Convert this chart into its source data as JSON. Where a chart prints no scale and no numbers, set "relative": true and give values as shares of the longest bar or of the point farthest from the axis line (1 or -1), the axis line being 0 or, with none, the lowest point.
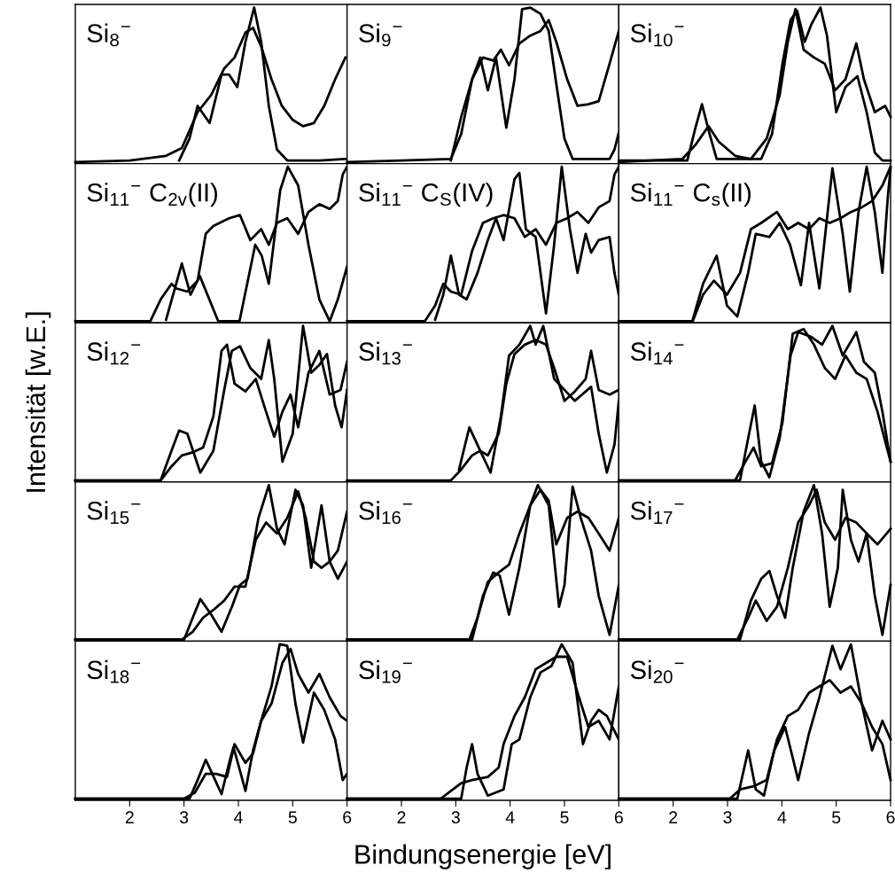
{
  "chart_data": [
    {
      "type": "line",
      "title": "Si$_{8}$$^{−}$",
      "relative": true,
      "xlim": [
        1,
        6
      ],
      "xticks": [
        2,
        3,
        4,
        5,
        6
      ],
      "tick_labels": false,
      "series": [
        {
          "color": "#000000",
          "x": [
            1.0,
            2.0,
            2.67,
            2.96,
            3.25,
            3.5,
            3.74,
            3.93,
            4.13,
            4.27,
            4.42,
            4.61,
            4.8,
            5.0,
            5.19,
            5.39,
            5.58,
            5.78,
            5.97
          ],
          "values": [
            0.01,
            0.02,
            0.05,
            0.1,
            0.33,
            0.44,
            0.61,
            0.68,
            0.84,
            0.87,
            0.75,
            0.54,
            0.37,
            0.28,
            0.24,
            0.26,
            0.37,
            0.54,
            0.68
          ]
        },
        {
          "color": "#000000",
          "x": [
            2.91,
            3.1,
            3.25,
            3.47,
            3.69,
            3.83,
            3.98,
            4.13,
            4.29,
            4.42,
            4.56,
            4.71,
            4.9,
            5.5,
            6.0
          ],
          "values": [
            0.02,
            0.16,
            0.37,
            0.26,
            0.57,
            0.57,
            0.49,
            0.78,
            1.0,
            0.78,
            0.37,
            0.09,
            0.02,
            0.02,
            0.03
          ]
        }
      ]
    },
    {
      "type": "line",
      "title": "Si$_{9}$$^{−}$",
      "relative": true,
      "xlim": [
        1,
        6
      ],
      "xticks": [
        2,
        3,
        4,
        5,
        6
      ],
      "tick_labels": false,
      "series": [
        {
          "color": "#000000",
          "x": [
            1.0,
            2.0,
            2.91,
            3.1,
            3.3,
            3.5,
            3.69,
            3.83,
            3.98,
            4.17,
            4.37,
            4.56,
            4.71,
            4.85,
            5.05,
            5.24,
            5.44,
            5.63,
            5.83,
            6.0
          ],
          "values": [
            0.01,
            0.02,
            0.03,
            0.19,
            0.54,
            0.68,
            0.66,
            0.73,
            0.63,
            0.77,
            0.82,
            0.85,
            0.92,
            0.78,
            0.54,
            0.37,
            0.38,
            0.4,
            0.64,
            0.85
          ]
        },
        {
          "color": "#000000",
          "x": [
            2.91,
            3.1,
            3.3,
            3.45,
            3.59,
            3.74,
            3.93,
            4.08,
            4.22,
            4.37,
            4.56,
            4.71,
            4.85,
            5.0,
            5.15,
            5.83,
            5.92,
            6.0
          ],
          "values": [
            0.02,
            0.3,
            0.54,
            0.68,
            0.47,
            0.68,
            0.23,
            0.54,
            0.99,
            1.0,
            0.96,
            0.85,
            0.51,
            0.16,
            0.03,
            0.03,
            0.09,
            0.2
          ]
        }
      ]
    },
    {
      "type": "line",
      "title": "Si$_{10}$$^{−}$",
      "relative": true,
      "xlim": [
        1,
        6
      ],
      "xticks": [
        2,
        3,
        4,
        5,
        6
      ],
      "tick_labels": false,
      "series": [
        {
          "color": "#000000",
          "x": [
            1.0,
            2.17,
            2.41,
            2.65,
            2.84,
            3.14,
            3.43,
            3.72,
            3.96,
            4.11,
            4.25,
            4.4,
            4.59,
            4.79,
            4.98,
            5.17,
            5.37,
            5.51,
            5.71,
            5.9,
            6.0
          ],
          "values": [
            0.01,
            0.03,
            0.12,
            0.24,
            0.14,
            0.05,
            0.03,
            0.16,
            0.44,
            0.78,
            0.99,
            0.73,
            0.68,
            0.64,
            0.47,
            0.54,
            0.77,
            0.54,
            0.33,
            0.37,
            0.3
          ]
        },
        {
          "color": "#000000",
          "x": [
            1.0,
            2.26,
            2.41,
            2.53,
            2.67,
            2.8,
            3.62,
            3.82,
            4.01,
            4.16,
            4.28,
            4.42,
            4.54,
            4.71,
            4.83,
            5.0,
            5.17,
            5.39,
            5.56,
            5.71,
            5.85,
            6.0
          ],
          "values": [
            0.02,
            0.02,
            0.23,
            0.38,
            0.19,
            0.03,
            0.03,
            0.19,
            0.64,
            0.92,
            0.98,
            0.78,
            0.89,
            1.0,
            0.82,
            0.33,
            0.49,
            0.56,
            0.33,
            0.07,
            0.02,
            0.02
          ]
        }
      ]
    },
    {
      "type": "line",
      "title": "Si$_{11}$$^{−}$ C$_{2v}$(II)",
      "relative": true,
      "xlim": [
        1,
        6
      ],
      "xticks": [
        2,
        3,
        4,
        5,
        6
      ],
      "tick_labels": false,
      "series": [
        {
          "color": "#000000",
          "x": [
            1.0,
            2.38,
            2.57,
            2.77,
            2.86,
            3.06,
            3.25,
            3.4,
            3.54,
            3.83,
            4.03,
            4.22,
            4.42,
            4.56,
            4.71,
            4.9,
            5.1,
            5.29,
            5.49,
            5.68,
            5.83,
            5.92,
            6.0
          ],
          "values": [
            0.01,
            0.01,
            0.15,
            0.25,
            0.22,
            0.2,
            0.27,
            0.57,
            0.62,
            0.67,
            0.69,
            0.53,
            0.6,
            0.5,
            0.64,
            0.67,
            0.57,
            0.71,
            0.76,
            0.73,
            0.78,
            0.95,
            1.0
          ]
        },
        {
          "color": "#000000",
          "x": [
            2.67,
            2.96,
            3.12,
            3.29,
            3.63,
            4.02,
            4.31,
            4.43,
            4.56,
            4.77,
            4.91,
            5.1,
            5.29,
            5.49,
            5.68,
            5.83,
            6.0
          ],
          "values": [
            0.02,
            0.38,
            0.18,
            0.3,
            0.01,
            0.01,
            0.5,
            0.43,
            0.25,
            0.85,
            1.0,
            0.88,
            0.5,
            0.15,
            0.01,
            0.15,
            0.36
          ]
        }
      ]
    },
    {
      "type": "line",
      "title": "Si$_{11}$$^{−}$ C$_{S}$(IV)",
      "relative": true,
      "xlim": [
        1,
        6
      ],
      "xticks": [
        2,
        3,
        4,
        5,
        6
      ],
      "tick_labels": false,
      "series": [
        {
          "color": "#000000",
          "x": [
            1.0,
            2.43,
            2.62,
            2.77,
            2.91,
            3.1,
            3.3,
            3.5,
            3.69,
            3.88,
            4.08,
            4.27,
            4.47,
            4.66,
            4.85,
            5.05,
            5.24,
            5.44,
            5.63,
            5.83,
            5.92,
            6.0
          ],
          "values": [
            0.01,
            0.01,
            0.11,
            0.25,
            0.2,
            0.18,
            0.46,
            0.64,
            0.67,
            0.69,
            0.67,
            0.55,
            0.6,
            0.5,
            0.64,
            0.67,
            0.71,
            0.64,
            0.74,
            0.78,
            0.95,
            1.0
          ]
        },
        {
          "color": "#000000",
          "x": [
            2.62,
            2.77,
            2.91,
            3.06,
            3.2,
            3.4,
            3.59,
            3.74,
            3.88,
            4.08,
            4.17,
            4.29,
            4.47,
            4.66,
            4.81,
            4.95,
            5.1,
            5.24,
            5.39,
            5.49,
            5.63,
            5.83,
            5.92,
            6.0
          ],
          "values": [
            0.02,
            0.18,
            0.43,
            0.18,
            0.15,
            0.32,
            0.53,
            0.67,
            0.53,
            0.92,
            0.96,
            0.6,
            0.55,
            0.06,
            0.5,
            1.0,
            0.6,
            0.32,
            0.57,
            0.45,
            0.53,
            0.55,
            0.32,
            0.18
          ]
        }
      ]
    },
    {
      "type": "line",
      "title": "Si$_{11}$$^{−}$ C$_{s}$(II)",
      "relative": true,
      "xlim": [
        1,
        6
      ],
      "xticks": [
        2,
        3,
        4,
        5,
        6
      ],
      "tick_labels": false,
      "series": [
        {
          "color": "#000000",
          "x": [
            1.0,
            2.36,
            2.55,
            2.75,
            2.99,
            3.23,
            3.43,
            3.62,
            3.91,
            4.11,
            4.3,
            4.5,
            4.69,
            4.88,
            5.08,
            5.27,
            5.47,
            5.66,
            5.85,
            6.0
          ],
          "values": [
            0.01,
            0.01,
            0.18,
            0.27,
            0.18,
            0.32,
            0.6,
            0.64,
            0.71,
            0.6,
            0.64,
            0.6,
            0.67,
            0.64,
            0.67,
            0.71,
            0.74,
            0.78,
            0.88,
            1.0
          ]
        },
        {
          "color": "#000000",
          "x": [
            2.36,
            2.55,
            2.8,
            2.99,
            3.18,
            3.38,
            3.52,
            3.77,
            3.96,
            4.15,
            4.35,
            4.5,
            4.69,
            4.93,
            5.12,
            5.25,
            5.41,
            5.56,
            5.71,
            5.85,
            5.95,
            6.0
          ],
          "values": [
            0.02,
            0.25,
            0.43,
            0.11,
            0.04,
            0.32,
            0.57,
            0.55,
            0.64,
            0.5,
            0.24,
            0.64,
            0.22,
            0.99,
            0.57,
            0.2,
            0.71,
            1.0,
            0.71,
            0.32,
            0.81,
            0.99
          ]
        }
      ]
    },
    {
      "type": "line",
      "title": "Si$_{12}$$^{−}$",
      "ylabel": "Intensität [w.E.]",
      "relative": true,
      "xlim": [
        1,
        6
      ],
      "xticks": [
        2,
        3,
        4,
        5,
        6
      ],
      "tick_labels": false,
      "series": [
        {
          "color": "#000000",
          "x": [
            1.0,
            2.57,
            2.77,
            2.96,
            3.16,
            3.35,
            3.54,
            3.69,
            3.79,
            3.93,
            4.13,
            4.32,
            4.51,
            4.66,
            4.81,
            4.96,
            5.1,
            5.29,
            5.49,
            5.68,
            5.88,
            6.0
          ],
          "values": [
            0.01,
            0.01,
            0.1,
            0.17,
            0.19,
            0.22,
            0.42,
            0.84,
            0.88,
            0.63,
            0.58,
            0.66,
            0.45,
            0.29,
            0.45,
            0.56,
            0.35,
            0.7,
            0.84,
            0.56,
            0.59,
            0.77
          ]
        },
        {
          "color": "#000000",
          "x": [
            1.0,
            2.57,
            2.77,
            2.91,
            3.06,
            3.3,
            3.54,
            3.74,
            3.88,
            4.03,
            4.22,
            4.42,
            4.56,
            4.66,
            4.81,
            5.0,
            5.19,
            5.34,
            5.49,
            5.63,
            5.78,
            5.9,
            6.0
          ],
          "values": [
            0.01,
            0.01,
            0.2,
            0.33,
            0.31,
            0.06,
            0.2,
            0.59,
            0.84,
            0.87,
            0.73,
            0.66,
            0.91,
            0.66,
            0.13,
            0.31,
            1.0,
            0.7,
            0.75,
            0.82,
            0.49,
            0.35,
            0.59
          ]
        }
      ]
    },
    {
      "type": "line",
      "title": "Si$_{13}$$^{−}$",
      "relative": true,
      "xlim": [
        1,
        6
      ],
      "xticks": [
        2,
        3,
        4,
        5,
        6
      ],
      "tick_labels": false,
      "series": [
        {
          "color": "#000000",
          "x": [
            1.0,
            2.91,
            3.1,
            3.3,
            3.45,
            3.59,
            3.79,
            3.93,
            4.08,
            4.27,
            4.47,
            4.66,
            4.81,
            5.0,
            5.19,
            5.39,
            5.49,
            5.63,
            5.83,
            6.0
          ],
          "values": [
            0.01,
            0.01,
            0.08,
            0.17,
            0.2,
            0.17,
            0.31,
            0.63,
            0.82,
            0.88,
            0.91,
            0.88,
            0.73,
            0.52,
            0.58,
            0.66,
            0.84,
            0.59,
            0.56,
            0.59
          ]
        },
        {
          "color": "#000000",
          "x": [
            3.06,
            3.25,
            3.45,
            3.64,
            3.83,
            3.98,
            4.17,
            4.37,
            4.47,
            4.61,
            4.81,
            5.0,
            5.19,
            5.49,
            5.63,
            5.78,
            5.92,
            6.0
          ],
          "values": [
            0.08,
            0.35,
            0.2,
            0.06,
            0.42,
            0.81,
            0.88,
            1.0,
            0.88,
            1.0,
            0.66,
            0.59,
            0.52,
            0.61,
            0.31,
            0.06,
            0.24,
            0.52
          ]
        }
      ]
    },
    {
      "type": "line",
      "title": "Si$_{14}$$^{−}$",
      "relative": true,
      "xlim": [
        1,
        6
      ],
      "xticks": [
        2,
        3,
        4,
        5,
        6
      ],
      "tick_labels": false,
      "series": [
        {
          "color": "#000000",
          "x": [
            1.0,
            3.14,
            3.33,
            3.48,
            3.62,
            3.82,
            4.01,
            4.2,
            4.4,
            4.59,
            4.79,
            4.98,
            5.17,
            5.37,
            5.56,
            5.76,
            6.0
          ],
          "values": [
            0.01,
            0.01,
            0.13,
            0.22,
            0.1,
            0.12,
            0.38,
            0.95,
            0.98,
            0.88,
            0.73,
            0.66,
            0.81,
            0.7,
            0.66,
            0.45,
            0.13
          ]
        },
        {
          "color": "#000000",
          "x": [
            1.0,
            3.23,
            3.38,
            3.5,
            3.62,
            3.77,
            3.96,
            4.16,
            4.3,
            4.54,
            4.74,
            4.93,
            5.12,
            5.37,
            5.51,
            5.71,
            5.85,
            6.0
          ],
          "values": [
            0.01,
            0.01,
            0.28,
            0.49,
            0.13,
            0.03,
            0.28,
            0.81,
            0.96,
            0.93,
            0.88,
            1.0,
            0.81,
            0.96,
            0.77,
            0.7,
            0.45,
            0.13
          ]
        }
      ]
    },
    {
      "type": "line",
      "title": "Si$_{15}$$^{−}$",
      "relative": true,
      "xlim": [
        1,
        6
      ],
      "xticks": [
        2,
        3,
        4,
        5,
        6
      ],
      "tick_labels": false,
      "series": [
        {
          "color": "#000000",
          "x": [
            1.0,
            2.96,
            3.16,
            3.35,
            3.54,
            3.74,
            3.93,
            4.13,
            4.32,
            4.51,
            4.71,
            4.9,
            5.1,
            5.24,
            5.39,
            5.53,
            5.68,
            5.83,
            6.0
          ],
          "values": [
            0.01,
            0.01,
            0.06,
            0.15,
            0.2,
            0.26,
            0.35,
            0.35,
            0.65,
            0.76,
            0.69,
            0.79,
            0.96,
            0.79,
            0.51,
            0.47,
            0.51,
            0.58,
            0.83
          ]
        },
        {
          "color": "#000000",
          "x": [
            1.0,
            3.0,
            3.16,
            3.3,
            3.5,
            3.69,
            3.88,
            4.03,
            4.17,
            4.37,
            4.56,
            4.71,
            4.85,
            5.05,
            5.19,
            5.34,
            5.53,
            5.68,
            5.83,
            6.0
          ],
          "values": [
            0.01,
            0.01,
            0.15,
            0.27,
            0.17,
            0.06,
            0.22,
            0.36,
            0.4,
            0.79,
            1.0,
            0.72,
            0.62,
            0.97,
            0.87,
            0.47,
            0.87,
            0.51,
            0.4,
            0.51
          ]
        }
      ]
    },
    {
      "type": "line",
      "title": "Si$_{16}$$^{−}$",
      "relative": true,
      "xlim": [
        1,
        6
      ],
      "xticks": [
        2,
        3,
        4,
        5,
        6
      ],
      "tick_labels": false,
      "series": [
        {
          "color": "#000000",
          "x": [
            1.0,
            3.25,
            3.4,
            3.59,
            3.79,
            3.98,
            4.17,
            4.37,
            4.56,
            4.71,
            4.85,
            5.05,
            5.24,
            5.44,
            5.63,
            5.83,
            6.0
          ],
          "values": [
            0.01,
            0.01,
            0.15,
            0.38,
            0.44,
            0.49,
            0.69,
            0.87,
            0.97,
            0.9,
            0.62,
            0.79,
            0.83,
            0.79,
            0.69,
            0.58,
            0.79
          ]
        },
        {
          "color": "#000000",
          "x": [
            1.0,
            3.3,
            3.5,
            3.69,
            3.81,
            3.98,
            4.17,
            4.37,
            4.51,
            4.71,
            4.9,
            5.0,
            5.15,
            5.3,
            5.49,
            5.63,
            5.83,
            6.0
          ],
          "values": [
            0.01,
            0.01,
            0.29,
            0.44,
            0.42,
            0.17,
            0.47,
            0.87,
            1.0,
            0.87,
            0.22,
            0.36,
            0.99,
            0.79,
            0.58,
            0.29,
            0.04,
            0.36
          ]
        }
      ]
    },
    {
      "type": "line",
      "title": "Si$_{17}$$^{−}$",
      "relative": true,
      "xlim": [
        1,
        6
      ],
      "xticks": [
        2,
        3,
        4,
        5,
        6
      ],
      "tick_labels": false,
      "series": [
        {
          "color": "#000000",
          "x": [
            1.0,
            3.18,
            3.38,
            3.52,
            3.72,
            3.91,
            4.11,
            4.3,
            4.5,
            4.64,
            4.79,
            4.98,
            5.17,
            5.37,
            5.56,
            5.76,
            6.0
          ],
          "values": [
            0.01,
            0.01,
            0.15,
            0.26,
            0.13,
            0.22,
            0.47,
            0.76,
            0.87,
            0.97,
            0.76,
            0.65,
            0.79,
            0.76,
            0.69,
            0.62,
            0.72
          ]
        },
        {
          "color": "#000000",
          "x": [
            1.0,
            3.23,
            3.43,
            3.62,
            3.77,
            3.91,
            4.06,
            4.2,
            4.4,
            4.59,
            4.74,
            4.88,
            5.03,
            5.12,
            5.27,
            5.41,
            5.56,
            5.71,
            5.85,
            6.0
          ],
          "values": [
            0.01,
            0.01,
            0.26,
            0.4,
            0.45,
            0.29,
            0.15,
            0.47,
            0.83,
            1.0,
            0.69,
            0.22,
            0.47,
            0.97,
            0.65,
            0.51,
            0.69,
            0.29,
            0.04,
            0.36
          ]
        }
      ]
    },
    {
      "type": "line",
      "title": "Si$_{18}$$^{−}$",
      "relative": true,
      "xlim": [
        1,
        6
      ],
      "xticks": [
        2,
        3,
        4,
        5,
        6
      ],
      "tick_labels": "x",
      "series": [
        {
          "color": "#000000",
          "x": [
            1.0,
            3.0,
            3.2,
            3.4,
            3.59,
            3.79,
            3.93,
            4.13,
            4.27,
            4.42,
            4.61,
            4.81,
            4.96,
            5.1,
            5.29,
            5.49,
            5.68,
            5.88,
            6.0
          ],
          "values": [
            0.01,
            0.01,
            0.05,
            0.17,
            0.17,
            0.15,
            0.36,
            0.24,
            0.3,
            0.51,
            0.62,
            0.88,
            0.97,
            0.81,
            0.69,
            0.81,
            0.66,
            0.54,
            0.51
          ]
        },
        {
          "color": "#000000",
          "x": [
            1.0,
            3.1,
            3.25,
            3.4,
            3.52,
            3.69,
            3.83,
            3.91,
            4.03,
            4.13,
            4.27,
            4.42,
            4.61,
            4.76,
            4.9,
            5.05,
            5.19,
            5.39,
            5.58,
            5.78,
            5.92,
            6.0
          ],
          "values": [
            0.01,
            0.01,
            0.13,
            0.26,
            0.17,
            0.04,
            0.24,
            0.34,
            0.19,
            0.06,
            0.32,
            0.51,
            0.73,
            1.0,
            0.99,
            0.62,
            0.37,
            0.69,
            0.58,
            0.39,
            0.13,
            0.17
          ]
        }
      ]
    },
    {
      "type": "line",
      "title": "Si$_{19}$$^{−}$",
      "xlabel": "Bindungsenergie [eV]",
      "relative": true,
      "xlim": [
        1,
        6
      ],
      "xticks": [
        2,
        3,
        4,
        5,
        6
      ],
      "tick_labels": "x",
      "series": [
        {
          "color": "#000000",
          "x": [
            1.0,
            2.72,
            2.91,
            3.1,
            3.3,
            3.59,
            3.79,
            3.88,
            4.08,
            4.27,
            4.47,
            4.66,
            4.85,
            5.05,
            5.24,
            5.44,
            5.63,
            5.83,
            6.0
          ],
          "values": [
            0.01,
            0.01,
            0.06,
            0.11,
            0.13,
            0.15,
            0.21,
            0.36,
            0.54,
            0.66,
            0.84,
            0.88,
            0.92,
            0.92,
            0.69,
            0.47,
            0.51,
            0.39,
            0.73
          ]
        },
        {
          "color": "#000000",
          "x": [
            1.0,
            3.1,
            3.2,
            3.3,
            3.4,
            3.59,
            3.88,
            4.03,
            4.17,
            4.37,
            4.56,
            4.76,
            4.95,
            5.15,
            5.34,
            5.49,
            5.63,
            5.78,
            6.0
          ],
          "values": [
            0.01,
            0.01,
            0.21,
            0.36,
            0.17,
            0.03,
            0.07,
            0.36,
            0.39,
            0.66,
            0.82,
            0.86,
            1.0,
            0.88,
            0.36,
            0.51,
            0.58,
            0.54,
            0.39
          ]
        }
      ]
    },
    {
      "type": "line",
      "title": "Si$_{20}$$^{−}$",
      "relative": true,
      "xlim": [
        1,
        6
      ],
      "xticks": [
        2,
        3,
        4,
        5,
        6
      ],
      "tick_labels": "x",
      "series": [
        {
          "color": "#000000",
          "x": [
            1.0,
            3.04,
            3.23,
            3.48,
            3.72,
            3.91,
            4.11,
            4.3,
            4.5,
            4.69,
            4.88,
            5.08,
            5.27,
            5.47,
            5.66,
            5.85,
            6.0
          ],
          "values": [
            0.01,
            0.01,
            0.07,
            0.09,
            0.13,
            0.39,
            0.54,
            0.58,
            0.69,
            0.73,
            0.77,
            0.69,
            0.73,
            0.62,
            0.47,
            0.36,
            0.13
          ]
        },
        {
          "color": "#000000",
          "x": [
            1.0,
            3.18,
            3.38,
            3.52,
            3.67,
            3.86,
            4.06,
            4.3,
            4.5,
            4.69,
            4.93,
            5.08,
            5.27,
            5.47,
            5.66,
            5.85,
            6.0
          ],
          "values": [
            0.01,
            0.01,
            0.32,
            0.07,
            0.03,
            0.32,
            0.47,
            0.13,
            0.43,
            0.66,
            0.99,
            0.84,
            1.0,
            0.62,
            0.32,
            0.51,
            0.39
          ]
        }
      ]
    }
  ]
}
